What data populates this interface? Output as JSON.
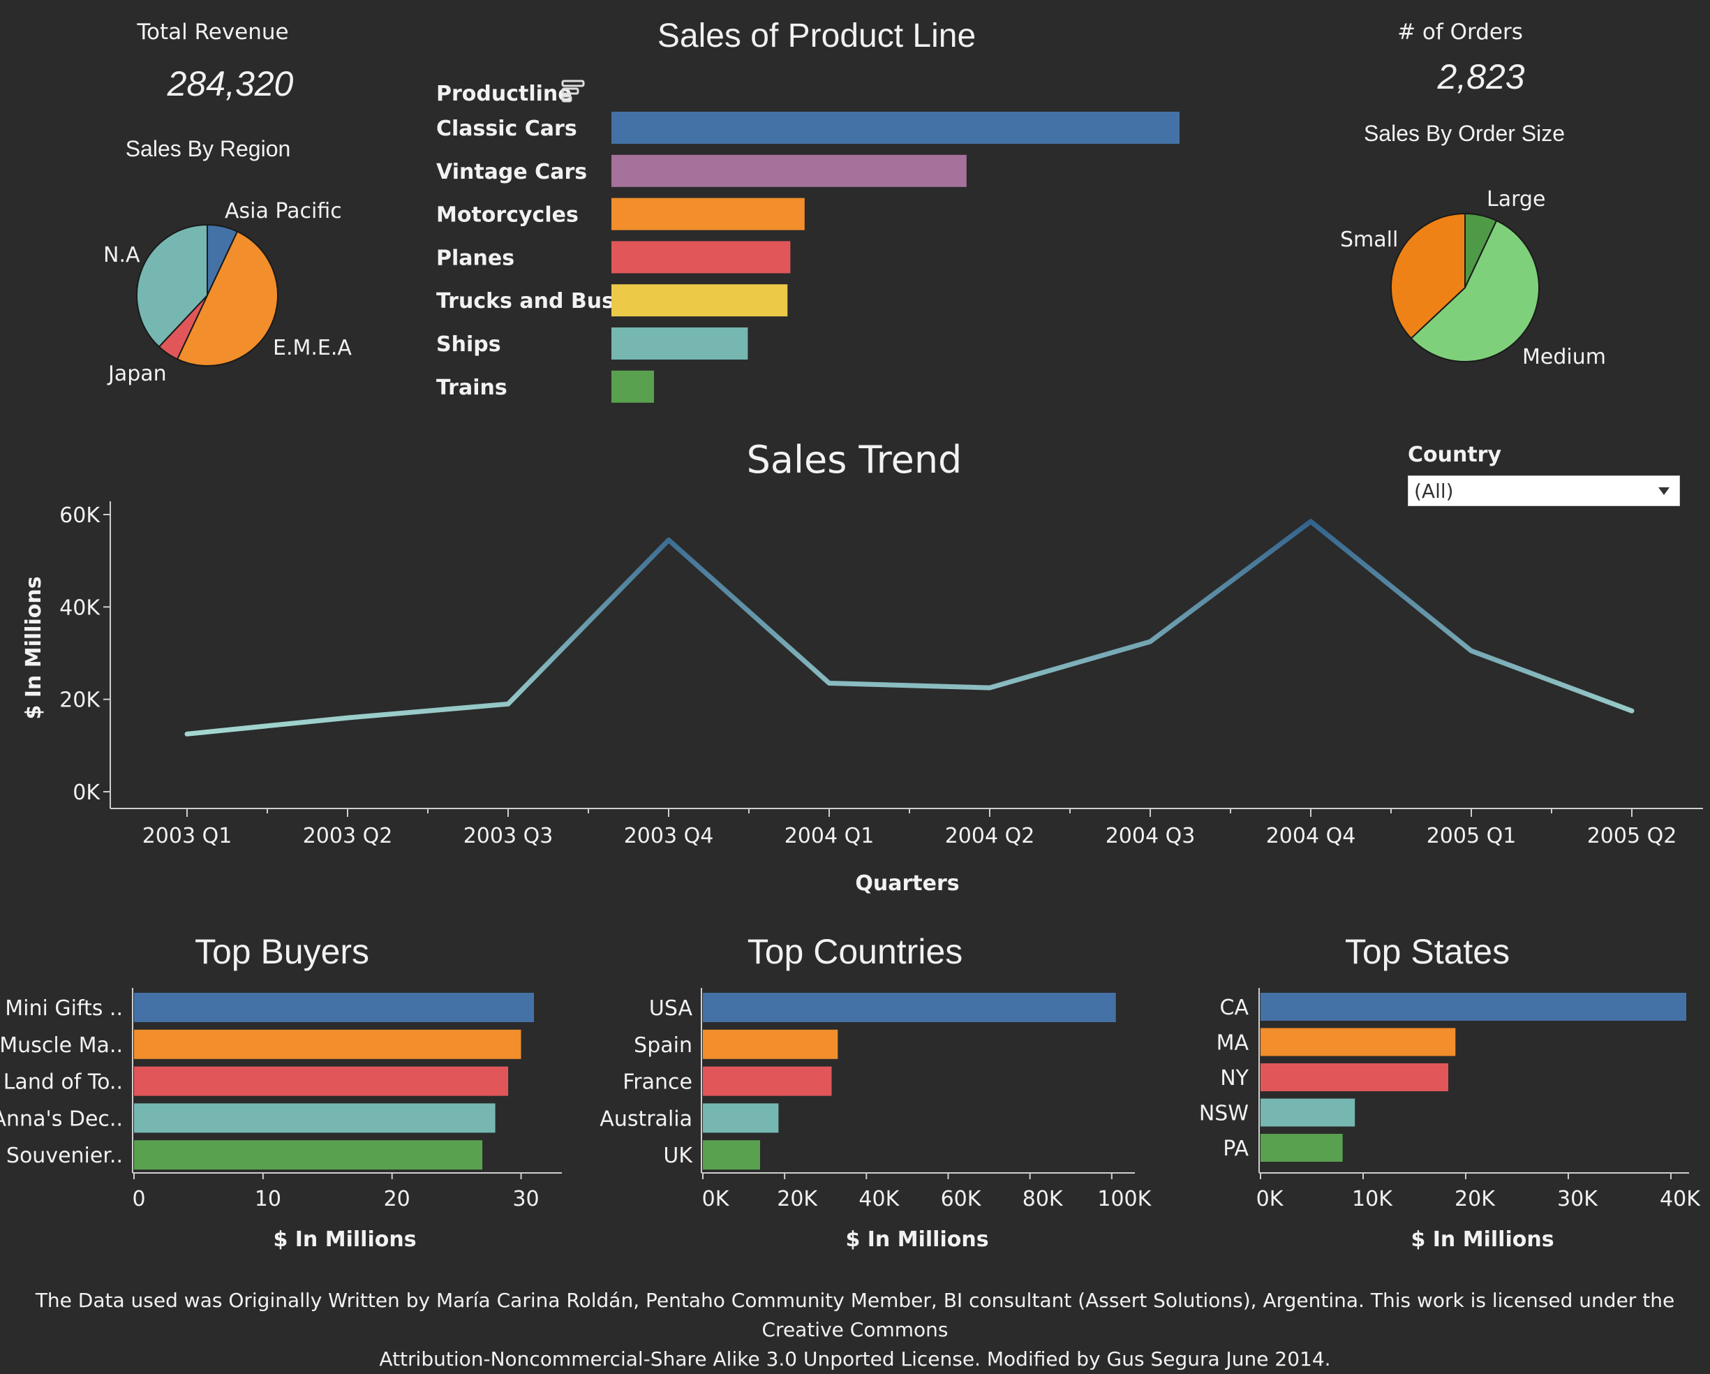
{
  "kpis": {
    "revenue_label": "Total Revenue",
    "revenue_value": "284,320",
    "orders_label": "# of Orders",
    "orders_value": "2,823"
  },
  "filter": {
    "label": "Country",
    "value": "(All)"
  },
  "footer": {
    "line1": "The Data used was Originally Written by María Carina Roldán, Pentaho Community Member, BI consultant (Assert Solutions), Argentina. This work is licensed under the Creative Commons",
    "line2": "Attribution-Noncommercial-Share Alike 3.0 Unported License. Modified by Gus Segura June 2014."
  },
  "chart_data": [
    {
      "id": "region",
      "type": "pie",
      "title": "Sales By Region",
      "labels": [
        "Asia Pacific",
        "E.M.E.A",
        "Japan",
        "N.A"
      ],
      "values": [
        7,
        50,
        5,
        38
      ],
      "colors": [
        "#4472a6",
        "#f28e2b",
        "#e15759",
        "#76b7b2"
      ]
    },
    {
      "id": "productline",
      "type": "bar",
      "title": "Sales of Product Line",
      "header": "Productline",
      "categories": [
        "Classic Cars",
        "Vintage Cars",
        "Motorcycles",
        "Planes",
        "Trucks and Buses",
        "Ships",
        "Trains"
      ],
      "values": [
        100,
        62.5,
        34,
        31.5,
        31,
        24,
        7.5
      ],
      "colors": [
        "#4472a6",
        "#a5729b",
        "#f28e2b",
        "#e15759",
        "#edc948",
        "#76b7b2",
        "#59a14f"
      ]
    },
    {
      "id": "ordersize",
      "type": "pie",
      "title": "Sales By Order Size",
      "labels": [
        "Large",
        "Medium",
        "Small"
      ],
      "values": [
        7,
        56,
        37
      ],
      "colors": [
        "#4f9a46",
        "#7fd07a",
        "#ef8216"
      ]
    },
    {
      "id": "trend",
      "type": "line",
      "title": "Sales Trend",
      "x": [
        "2003 Q1",
        "2003 Q2",
        "2003 Q3",
        "2003 Q4",
        "2004 Q1",
        "2004 Q2",
        "2004 Q3",
        "2004 Q4",
        "2005 Q1",
        "2005 Q2"
      ],
      "y": [
        12500,
        16000,
        19000,
        54500,
        23500,
        22500,
        32500,
        58500,
        30500,
        17500
      ],
      "xlabel": "Quarters",
      "ylabel": "$ In Millions",
      "ylim": [
        0,
        60000
      ],
      "yticks": [
        "0K",
        "20K",
        "40K",
        "60K"
      ],
      "ytick_values": [
        0,
        20000,
        40000,
        60000
      ],
      "colors": [
        "#a9dcd3",
        "#2f5f8a"
      ]
    },
    {
      "id": "buyers",
      "type": "bar",
      "title": "Top Buyers",
      "categories": [
        "Mini Gifts ..",
        "Muscle Ma..",
        "Land of To..",
        "Anna's Dec..",
        "Souvenier.."
      ],
      "values": [
        31,
        30,
        29,
        28,
        27
      ],
      "xlabel": "$ In Millions",
      "xlim": [
        0,
        33
      ],
      "ticks": [
        "0",
        "10",
        "20",
        "30"
      ],
      "tick_values": [
        0,
        10,
        20,
        30
      ],
      "colors": [
        "#4472a6",
        "#f28e2b",
        "#e15759",
        "#76b7b2",
        "#59a14f"
      ]
    },
    {
      "id": "countries",
      "type": "bar",
      "title": "Top Countries",
      "categories": [
        "USA",
        "Spain",
        "France",
        "Australia",
        "UK"
      ],
      "values": [
        101000,
        33000,
        31500,
        18500,
        14000
      ],
      "xlabel": "$ In Millions",
      "xlim": [
        0,
        106000
      ],
      "ticks": [
        "0K",
        "20K",
        "40K",
        "60K",
        "80K",
        "100K"
      ],
      "tick_values": [
        0,
        20000,
        40000,
        60000,
        80000,
        100000
      ],
      "colors": [
        "#4472a6",
        "#f28e2b",
        "#e15759",
        "#76b7b2",
        "#59a14f"
      ]
    },
    {
      "id": "states",
      "type": "bar",
      "title": "Top States",
      "categories": [
        "CA",
        "MA",
        "NY",
        "NSW",
        "PA"
      ],
      "values": [
        41500,
        19000,
        18300,
        9200,
        8000
      ],
      "xlabel": "$ In Millions",
      "xlim": [
        0,
        41500
      ],
      "ticks": [
        "0K",
        "10K",
        "20K",
        "30K",
        "40K"
      ],
      "tick_values": [
        0,
        10000,
        20000,
        30000,
        40000
      ],
      "colors": [
        "#4472a6",
        "#f28e2b",
        "#e15759",
        "#76b7b2",
        "#59a14f"
      ]
    }
  ]
}
